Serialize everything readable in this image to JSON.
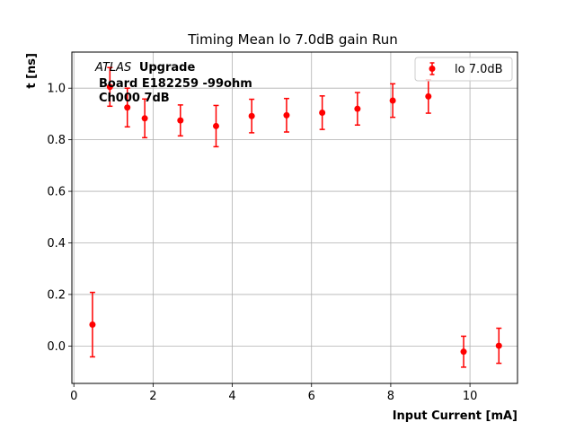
{
  "chart_data": {
    "type": "scatter",
    "title": "Timing Mean lo 7.0dB gain Run",
    "xlabel": "Input Current [mA]",
    "ylabel": "t [ns]",
    "xlim": [
      -0.05,
      11.2
    ],
    "ylim": [
      -0.145,
      1.14
    ],
    "xticks": [
      0,
      2,
      4,
      6,
      8,
      10
    ],
    "yticks": [
      0.0,
      0.2,
      0.4,
      0.6,
      0.8,
      1.0
    ],
    "xtick_labels": [
      "0",
      "2",
      "4",
      "6",
      "8",
      "10"
    ],
    "ytick_labels": [
      "0.0",
      "0.2",
      "0.4",
      "0.6",
      "0.8",
      "1.0"
    ],
    "grid": true,
    "legend_position": "top-right",
    "annotation": {
      "prefix": "ATLAS",
      "line1": "Upgrade",
      "line2": "Board E182259 -99ohm",
      "line3": "Ch000 7dB"
    },
    "series": [
      {
        "name": "lo 7.0dB",
        "color": "#ff0000",
        "marker": "circle",
        "error_bars": true,
        "x": [
          0.47,
          0.91,
          1.35,
          1.79,
          2.69,
          3.59,
          4.49,
          5.37,
          6.27,
          7.16,
          8.05,
          8.95,
          9.84,
          10.73
        ],
        "y": [
          0.083,
          1.005,
          0.925,
          0.883,
          0.875,
          0.853,
          0.892,
          0.895,
          0.905,
          0.92,
          0.952,
          0.968,
          -0.022,
          0.001
        ],
        "yerr": [
          0.125,
          0.075,
          0.075,
          0.075,
          0.06,
          0.08,
          0.065,
          0.065,
          0.065,
          0.063,
          0.065,
          0.065,
          0.06,
          0.068
        ]
      }
    ]
  }
}
